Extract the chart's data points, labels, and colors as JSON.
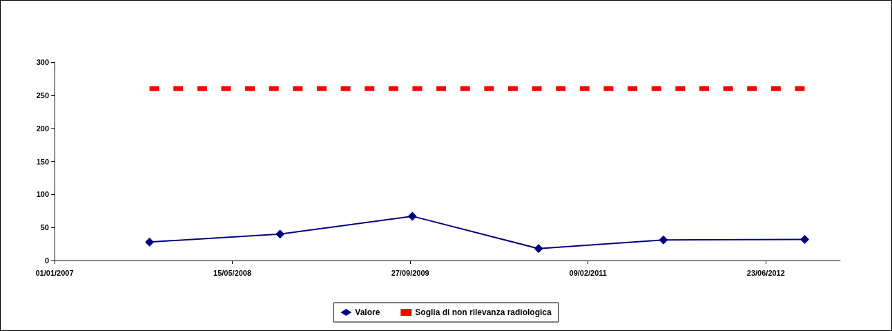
{
  "chart_data": {
    "type": "line",
    "x": [
      "2007-09-25",
      "2008-09-26",
      "2009-10-03",
      "2010-09-23",
      "2011-09-09",
      "2012-10-10"
    ],
    "series": [
      {
        "name": "Valore",
        "color": "#000080",
        "values": [
          28,
          40,
          67,
          18,
          31,
          32
        ],
        "marker": "diamond",
        "line_style": "solid"
      },
      {
        "name": "Soglia di non rilevanza radiologica",
        "color": "#ff0000",
        "x": [
          "2007-09-25",
          "2012-10-10"
        ],
        "values": [
          260,
          260
        ],
        "marker": "none",
        "line_style": "dashed"
      }
    ],
    "xlim": [
      "2007-01-01",
      "2013-01-18"
    ],
    "xticks": [
      {
        "value": "2007-01-01",
        "label": "01/01/2007"
      },
      {
        "value": "2008-05-15",
        "label": "15/05/2008"
      },
      {
        "value": "2009-09-27",
        "label": "27/09/2009"
      },
      {
        "value": "2011-02-09",
        "label": "09/02/2011"
      },
      {
        "value": "2012-06-23",
        "label": "23/06/2012"
      }
    ],
    "ylim": [
      0,
      300
    ],
    "yticks": [
      0,
      50,
      100,
      150,
      200,
      250,
      300
    ],
    "grid": false,
    "legend": "bottom"
  }
}
